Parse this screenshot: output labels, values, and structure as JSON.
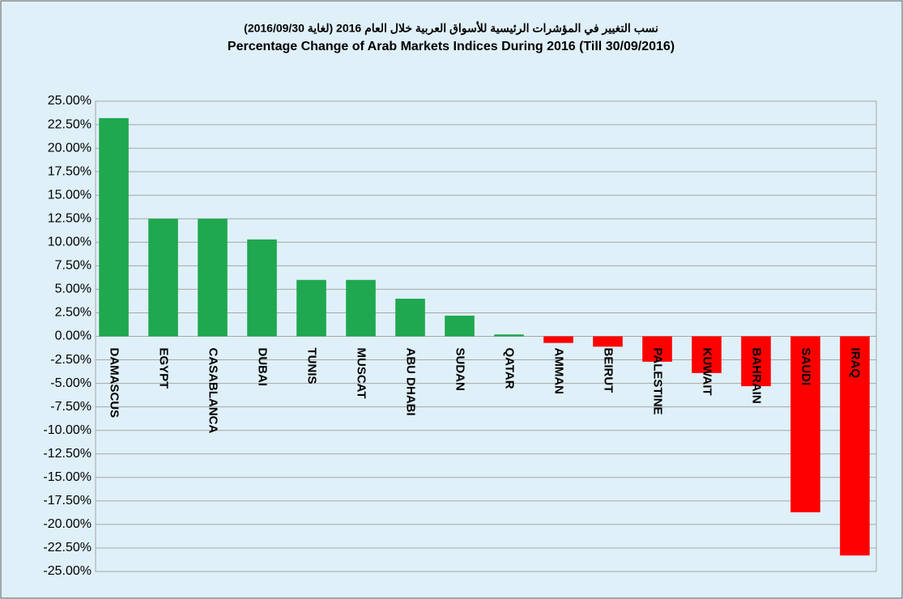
{
  "chart_data": {
    "type": "bar",
    "title_ar": "نسب التغيير في المؤشرات الرئيسية للأسواق العربية خلال العام 2016 (لغاية 2016/09/30)",
    "title": "Percentage Change  of Arab Markets Indices During 2016 (Till  30/09/2016)",
    "categories": [
      "DAMASCUS",
      "EGYPT",
      "CASABLANCA",
      "DUBAI",
      "TUNIS",
      "MUSCAT",
      "ABU DHABI",
      "SUDAN",
      "QATAR",
      "AMMAN",
      "BEIRUT",
      "PALESTINE",
      "KUWAIT",
      "BAHRAIN",
      "SAUDI",
      "IRAQ"
    ],
    "values": [
      23.2,
      12.5,
      12.5,
      10.3,
      6.0,
      6.0,
      4.0,
      2.2,
      0.2,
      -0.7,
      -1.1,
      -2.7,
      -3.9,
      -5.3,
      -18.7,
      -23.3
    ],
    "colors": [
      "#1fa84f",
      "#1fa84f",
      "#1fa84f",
      "#1fa84f",
      "#1fa84f",
      "#1fa84f",
      "#1fa84f",
      "#1fa84f",
      "#1fa84f",
      "#ff0000",
      "#ff0000",
      "#ff0000",
      "#ff0000",
      "#ff0000",
      "#ff0000",
      "#ff0000"
    ],
    "ylim": [
      -25,
      25
    ],
    "yticks": [
      {
        "value": 25,
        "label": "25.00%"
      },
      {
        "value": 22.5,
        "label": "22.50%"
      },
      {
        "value": 20,
        "label": "20.00%"
      },
      {
        "value": 17.5,
        "label": "17.50%"
      },
      {
        "value": 15,
        "label": "15.00%"
      },
      {
        "value": 12.5,
        "label": "12.50%"
      },
      {
        "value": 10,
        "label": "10.00%"
      },
      {
        "value": 7.5,
        "label": "7.50%"
      },
      {
        "value": 5,
        "label": "5.00%"
      },
      {
        "value": 2.5,
        "label": "2.50%"
      },
      {
        "value": 0,
        "label": "0.00%"
      },
      {
        "value": -2.5,
        "label": "-2.50%"
      },
      {
        "value": -5,
        "label": "-5.00%"
      },
      {
        "value": -7.5,
        "label": "-7.50%"
      },
      {
        "value": -10,
        "label": "-10.00%"
      },
      {
        "value": -12.5,
        "label": "-12.50%"
      },
      {
        "value": -15,
        "label": "-15.00%"
      },
      {
        "value": -17.5,
        "label": "-17.50%"
      },
      {
        "value": -20,
        "label": "-20.00%"
      },
      {
        "value": -22.5,
        "label": "-22.50%"
      },
      {
        "value": -25,
        "label": "-25.00%"
      }
    ],
    "grid": true
  }
}
